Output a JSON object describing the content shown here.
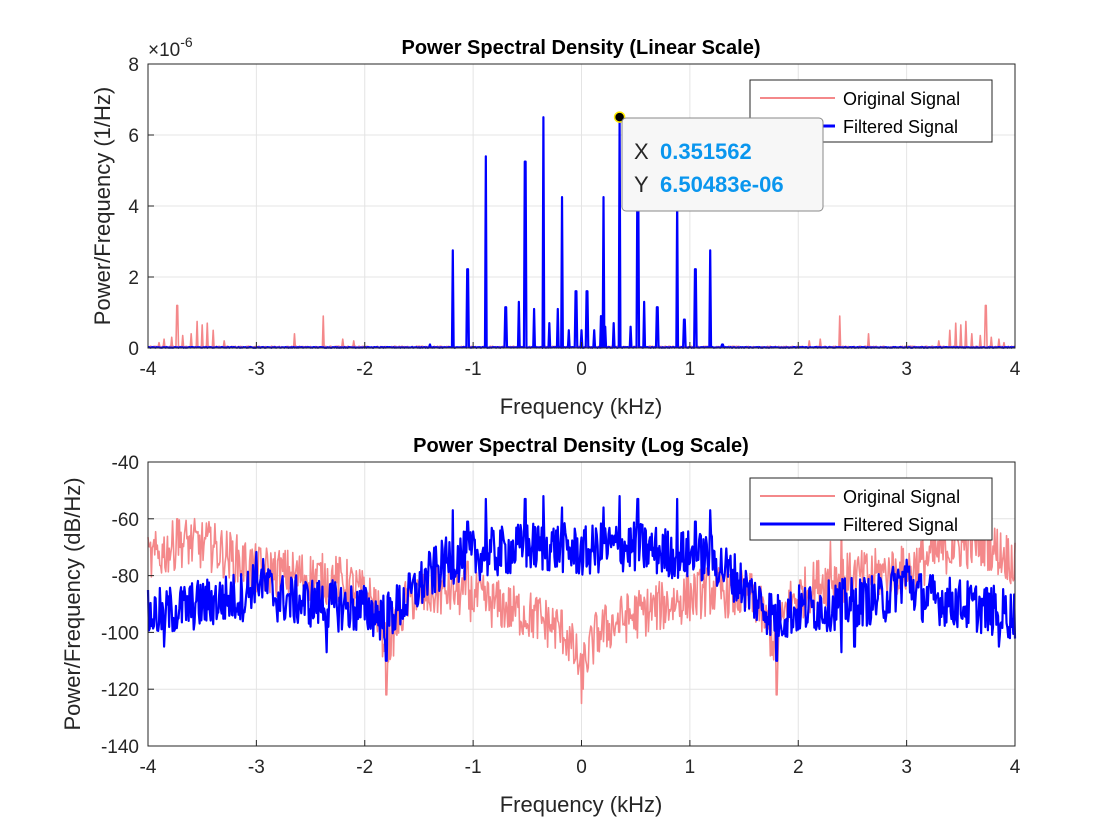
{
  "colors": {
    "original": "#f4888a",
    "filtered": "#0000ff",
    "tooltip_value": "#0a96ee",
    "grid": "#e4e4e4"
  },
  "chart_data": [
    {
      "type": "line",
      "title": "Power Spectral Density (Linear Scale)",
      "xlabel": "Frequency (kHz)",
      "ylabel": "Power/Frequency (1/Hz)",
      "exponent_label": "×10",
      "exponent_power": "-6",
      "xlim": [
        -4,
        4
      ],
      "ylim": [
        0,
        8
      ],
      "xticks": [
        "-4",
        "-3",
        "-2",
        "-1",
        "0",
        "1",
        "2",
        "3",
        "4"
      ],
      "yticks": [
        "0",
        "2",
        "4",
        "6",
        "8"
      ],
      "grid": true,
      "legend_position": "top-right",
      "series": [
        {
          "name": "Original Signal",
          "color": "#f4888a",
          "noise_floor": 0.04,
          "peaks": [
            [
              -3.9,
              0.15
            ],
            [
              -3.85,
              0.25
            ],
            [
              -3.78,
              0.3
            ],
            [
              -3.73,
              1.2
            ],
            [
              -3.68,
              0.35
            ],
            [
              -3.6,
              0.4
            ],
            [
              -3.55,
              0.75
            ],
            [
              -3.5,
              0.65
            ],
            [
              -3.45,
              0.7
            ],
            [
              -3.4,
              0.5
            ],
            [
              -3.3,
              0.2
            ],
            [
              -2.65,
              0.4
            ],
            [
              -2.38,
              0.9
            ],
            [
              -2.2,
              0.25
            ],
            [
              -2.1,
              0.2
            ],
            [
              2.1,
              0.2
            ],
            [
              2.2,
              0.25
            ],
            [
              2.38,
              0.9
            ],
            [
              2.65,
              0.4
            ],
            [
              3.3,
              0.2
            ],
            [
              3.4,
              0.5
            ],
            [
              3.45,
              0.7
            ],
            [
              3.5,
              0.65
            ],
            [
              3.55,
              0.75
            ],
            [
              3.6,
              0.4
            ],
            [
              3.68,
              0.35
            ],
            [
              3.73,
              1.2
            ],
            [
              3.78,
              0.3
            ],
            [
              3.85,
              0.25
            ],
            [
              3.9,
              0.15
            ]
          ]
        },
        {
          "name": "Filtered Signal",
          "color": "#0000ff",
          "noise_floor": 0.02,
          "peaks": [
            [
              -1.4,
              0.1
            ],
            [
              -1.19,
              2.75
            ],
            [
              -1.05,
              2.22
            ],
            [
              -0.88,
              5.4
            ],
            [
              -0.7,
              1.15
            ],
            [
              -0.58,
              1.3
            ],
            [
              -0.52,
              5.25
            ],
            [
              -0.44,
              1.1
            ],
            [
              -0.35,
              6.5
            ],
            [
              -0.3,
              0.7
            ],
            [
              -0.22,
              1.1
            ],
            [
              -0.18,
              4.25
            ],
            [
              -0.12,
              0.5
            ],
            [
              -0.05,
              1.6
            ],
            [
              0.0,
              0.5
            ],
            [
              0.05,
              1.6
            ],
            [
              0.12,
              0.5
            ],
            [
              0.18,
              0.9
            ],
            [
              0.2,
              4.25
            ],
            [
              0.22,
              0.6
            ],
            [
              0.3,
              0.7
            ],
            [
              0.351562,
              6.50483
            ],
            [
              0.45,
              0.6
            ],
            [
              0.52,
              4.9
            ],
            [
              0.58,
              1.3
            ],
            [
              0.7,
              1.15
            ],
            [
              0.88,
              4.2
            ],
            [
              0.95,
              0.8
            ],
            [
              1.05,
              2.22
            ],
            [
              1.19,
              2.75
            ],
            [
              1.3,
              0.1
            ]
          ]
        }
      ],
      "datatip": {
        "x_label": "X",
        "x_value": "0.351562",
        "y_label": "Y",
        "y_value": "6.50483e-06",
        "point": [
          0.351562,
          6.50483
        ]
      }
    },
    {
      "type": "line",
      "title": "Power Spectral Density (Log Scale)",
      "xlabel": "Frequency (kHz)",
      "ylabel": "Power/Frequency (dB/Hz)",
      "xlim": [
        -4,
        4
      ],
      "ylim": [
        -140,
        -40
      ],
      "xticks": [
        "-4",
        "-3",
        "-2",
        "-1",
        "0",
        "1",
        "2",
        "3",
        "4"
      ],
      "yticks": [
        "-140",
        "-120",
        "-100",
        "-80",
        "-60",
        "-40"
      ],
      "grid": true,
      "legend_position": "top-right",
      "series": [
        {
          "name": "Original Signal",
          "color": "#f4888a",
          "envelope": [
            [
              -4.0,
              -75
            ],
            [
              -3.7,
              -68
            ],
            [
              -3.4,
              -70
            ],
            [
              -3.0,
              -78
            ],
            [
              -2.6,
              -80
            ],
            [
              -2.2,
              -82
            ],
            [
              -1.9,
              -90
            ],
            [
              -1.8,
              -105
            ],
            [
              -1.6,
              -88
            ],
            [
              -1.2,
              -85
            ],
            [
              -0.8,
              -90
            ],
            [
              -0.4,
              -95
            ],
            [
              -0.15,
              -100
            ],
            [
              0.0,
              -113
            ],
            [
              0.15,
              -100
            ],
            [
              0.4,
              -95
            ],
            [
              0.8,
              -90
            ],
            [
              1.2,
              -85
            ],
            [
              1.6,
              -88
            ],
            [
              1.8,
              -105
            ],
            [
              1.9,
              -90
            ],
            [
              2.2,
              -82
            ],
            [
              2.6,
              -80
            ],
            [
              3.0,
              -78
            ],
            [
              3.4,
              -70
            ],
            [
              3.7,
              -68
            ],
            [
              4.0,
              -75
            ]
          ],
          "spikes": [
            [
              -3.73,
              -60
            ],
            [
              -3.42,
              -63
            ],
            [
              -1.8,
              -122
            ],
            [
              -1.05,
              -75
            ],
            [
              0.0,
              -125
            ],
            [
              1.8,
              -122
            ],
            [
              2.3,
              -68
            ],
            [
              2.4,
              -61
            ],
            [
              3.73,
              -60
            ],
            [
              3.42,
              -63
            ]
          ]
        },
        {
          "name": "Filtered Signal",
          "color": "#0000ff",
          "envelope": [
            [
              -4.0,
              -94
            ],
            [
              -3.5,
              -90
            ],
            [
              -3.1,
              -87
            ],
            [
              -3.0,
              -80
            ],
            [
              -2.8,
              -88
            ],
            [
              -2.4,
              -90
            ],
            [
              -2.0,
              -92
            ],
            [
              -1.8,
              -95
            ],
            [
              -1.6,
              -88
            ],
            [
              -1.4,
              -80
            ],
            [
              -1.2,
              -74
            ],
            [
              -0.8,
              -72
            ],
            [
              -0.5,
              -70
            ],
            [
              -0.2,
              -70
            ],
            [
              0.0,
              -72
            ],
            [
              0.2,
              -70
            ],
            [
              0.5,
              -70
            ],
            [
              0.8,
              -72
            ],
            [
              1.2,
              -74
            ],
            [
              1.4,
              -80
            ],
            [
              1.6,
              -88
            ],
            [
              1.8,
              -95
            ],
            [
              2.0,
              -92
            ],
            [
              2.4,
              -90
            ],
            [
              2.8,
              -88
            ],
            [
              3.0,
              -80
            ],
            [
              3.1,
              -87
            ],
            [
              3.5,
              -90
            ],
            [
              4.0,
              -94
            ]
          ],
          "spikes": [
            [
              -1.19,
              -57
            ],
            [
              -1.05,
              -61
            ],
            [
              -0.88,
              -53
            ],
            [
              -0.52,
              -53
            ],
            [
              -0.35,
              -52
            ],
            [
              -0.18,
              -56
            ],
            [
              0.2,
              -56
            ],
            [
              0.35,
              -52
            ],
            [
              0.52,
              -53
            ],
            [
              0.88,
              -53
            ],
            [
              1.05,
              -61
            ],
            [
              1.19,
              -57
            ],
            [
              -1.8,
              -110
            ],
            [
              1.8,
              -110
            ],
            [
              -2.35,
              -107
            ],
            [
              2.52,
              -107
            ],
            [
              -3.85,
              -105
            ],
            [
              3.85,
              -105
            ],
            [
              2.52,
              -105
            ],
            [
              2.4,
              -107
            ]
          ]
        }
      ]
    }
  ]
}
